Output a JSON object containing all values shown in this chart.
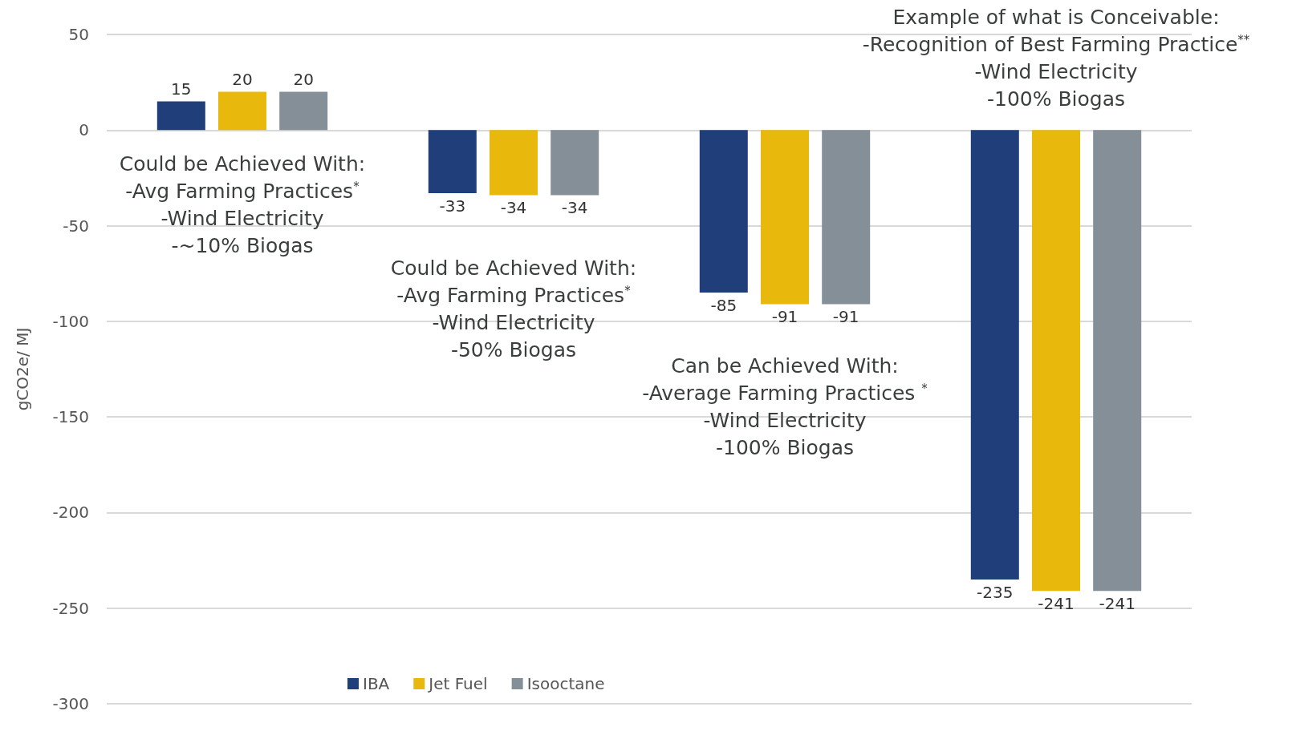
{
  "chart_data": {
    "type": "bar",
    "ylabel": "gCO2e/ MJ",
    "categories": [
      null,
      null,
      null,
      null
    ],
    "series": [
      {
        "name": "IBA",
        "color": "#203f7a",
        "values": [
          15,
          -33,
          -85,
          -235
        ]
      },
      {
        "name": "Jet Fuel",
        "color": "#e8b90c",
        "values": [
          20,
          -34,
          -91,
          -241
        ]
      },
      {
        "name": "Isooctane",
        "color": "#848f97",
        "values": [
          20,
          -34,
          -91,
          -241
        ]
      }
    ],
    "ylim": [
      -300,
      50
    ],
    "yticks": [
      -300,
      -250,
      -200,
      -150,
      -100,
      -50,
      0,
      50
    ],
    "grid": "y",
    "legend": "bottom",
    "data_labels": true,
    "annotations": [
      "Could be Achieved With:\n-Avg Farming Practices$^{*}$\n-Wind Electricity\n-~10% Biogas",
      "Could be Achieved With:\n-Avg Farming Practices$^{*}$\n-Wind Electricity\n-50% Biogas",
      "Can be Achieved With:\n-Average Farming Practices $^{*}$\n-Wind Electricity\n-100% Biogas",
      "Example of what is Conceivable:\n-Recognition of Best Farming Practice$^{**}$\n-Wind Electricity\n-100% Biogas"
    ]
  }
}
